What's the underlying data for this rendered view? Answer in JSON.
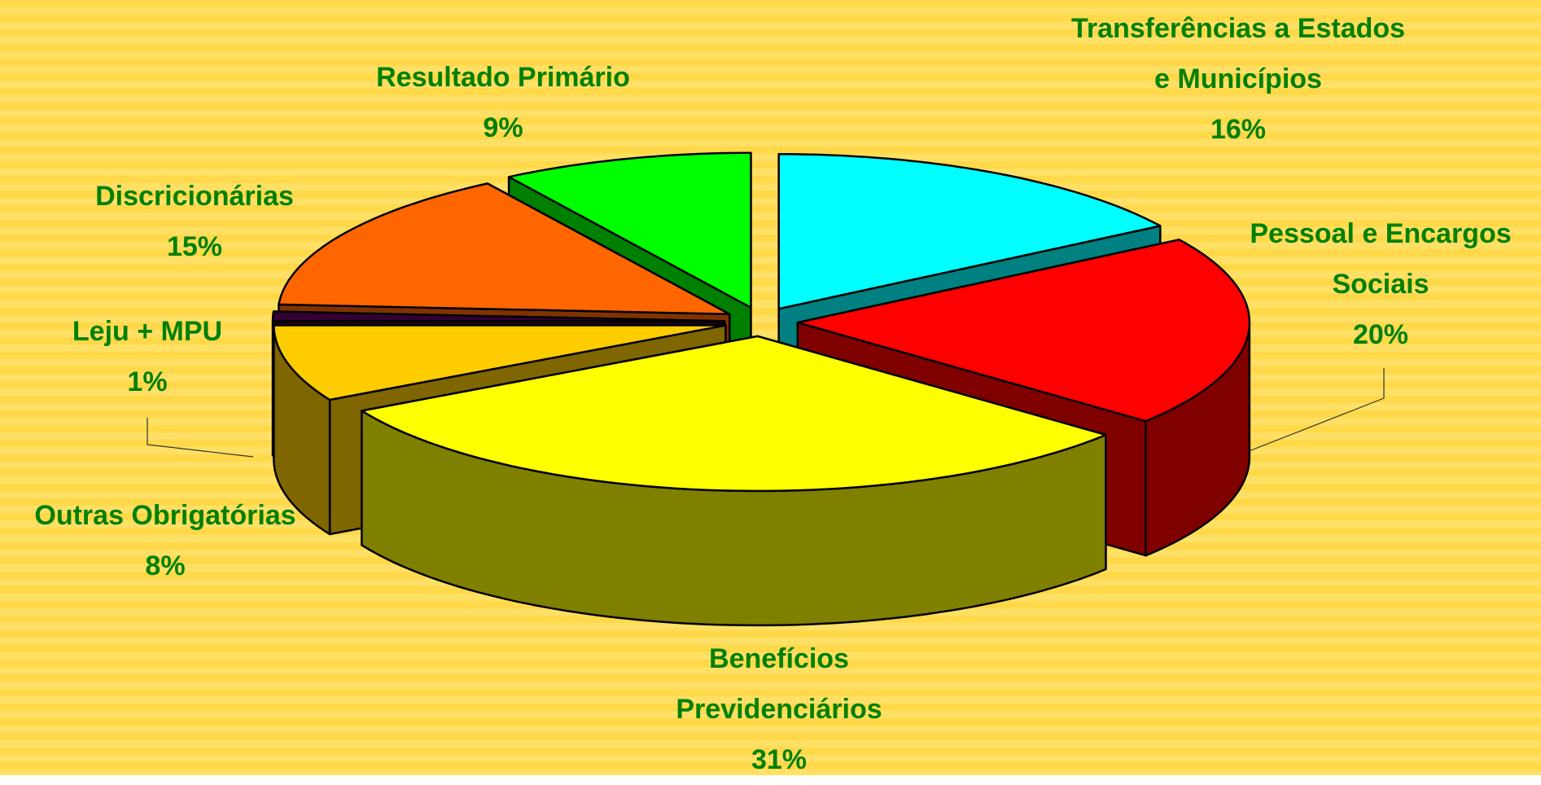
{
  "chart_data": {
    "type": "pie3d",
    "categories": [
      "Transferências a Estados e Municípios",
      "Pessoal e Encargos Sociais",
      "Benefícios Previdenciários",
      "Outras Obrigatórias",
      "Leju + MPU",
      "Discricionárias",
      "Resultado Primário"
    ],
    "values": [
      16,
      20,
      31,
      8,
      1,
      15,
      9
    ],
    "value_labels": [
      "16%",
      "20%",
      "31%",
      "8%",
      "1%",
      "15%",
      "9%"
    ],
    "colors": [
      "#00ffff",
      "#ff0000",
      "#ffff00",
      "#ffcc00",
      "#330033",
      "#ff6600",
      "#00ff00"
    ]
  }
}
